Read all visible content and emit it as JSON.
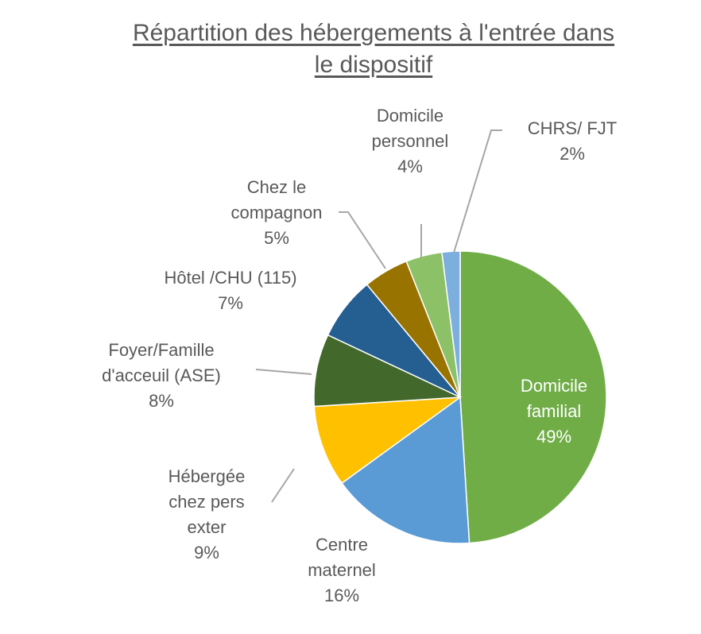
{
  "chart_data": {
    "type": "pie",
    "title_line1": "Répartition des hébergements à l'entrée dans",
    "title_line2": "le dispositif",
    "slices": [
      {
        "label": [
          "Domicile",
          "familial"
        ],
        "pct_label": "49%",
        "value": 49,
        "color": "#70ad47"
      },
      {
        "label": [
          "Centre",
          "maternel"
        ],
        "pct_label": "16%",
        "value": 16,
        "color": "#5b9bd5"
      },
      {
        "label": [
          "Hébergée",
          "chez pers",
          "exter"
        ],
        "pct_label": "9%",
        "value": 9,
        "color": "#ffc000"
      },
      {
        "label": [
          "Foyer/Famille",
          "d'acceuil (ASE)"
        ],
        "pct_label": "8%",
        "value": 8,
        "color": "#43682b"
      },
      {
        "label": [
          "Hôtel /CHU (115)"
        ],
        "pct_label": "7%",
        "value": 7,
        "color": "#255e91"
      },
      {
        "label": [
          "Chez le",
          "compagnon"
        ],
        "pct_label": "5%",
        "value": 5,
        "color": "#997300"
      },
      {
        "label": [
          "Domicile",
          "personnel"
        ],
        "pct_label": "4%",
        "value": 4,
        "color": "#8cc168"
      },
      {
        "label": [
          "CHRS/ FJT"
        ],
        "pct_label": "2%",
        "value": 2,
        "color": "#7cafdd"
      }
    ],
    "legend": "none",
    "label_position": "outside-with-leader-lines"
  }
}
